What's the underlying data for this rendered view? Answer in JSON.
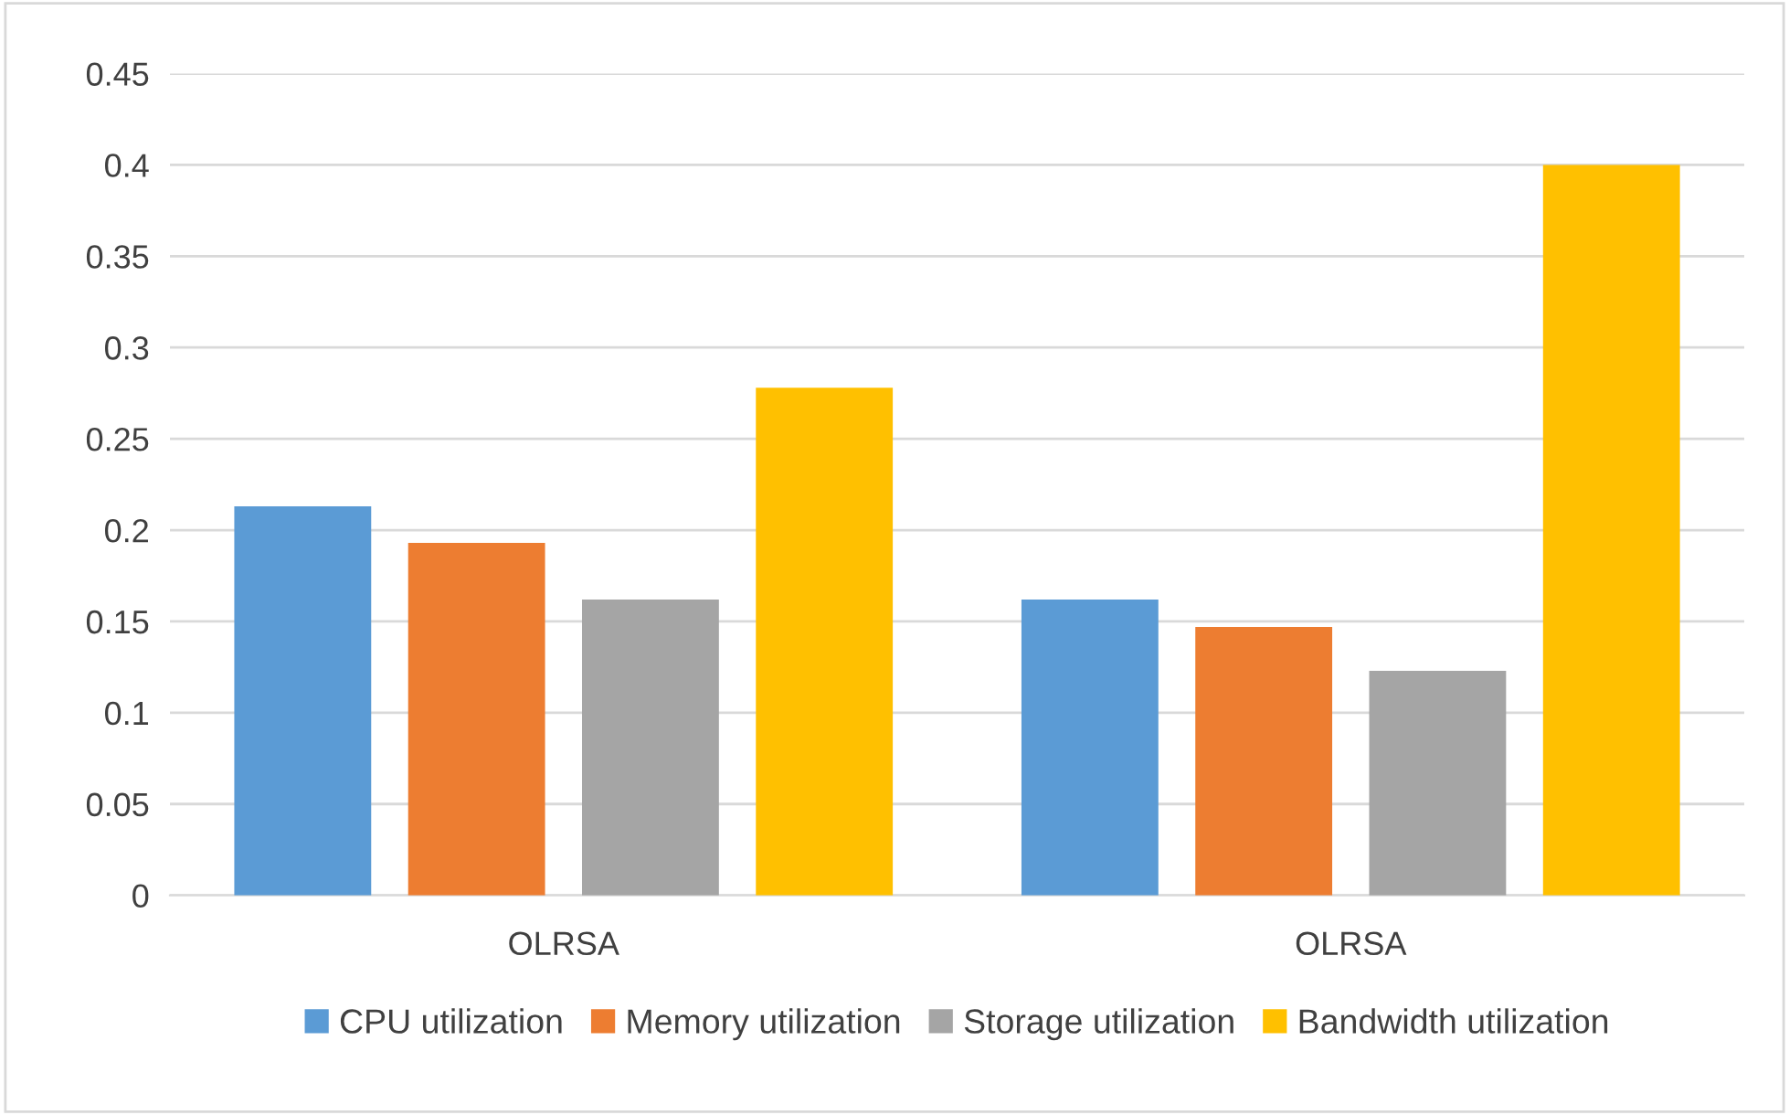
{
  "chart_data": {
    "type": "bar",
    "categories": [
      "OLRSA",
      "OLRSA"
    ],
    "series": [
      {
        "name": "CPU utilization",
        "color": "#5b9bd5",
        "values": [
          0.213,
          0.162
        ]
      },
      {
        "name": "Memory utilization",
        "color": "#ed7d31",
        "values": [
          0.193,
          0.147
        ]
      },
      {
        "name": "Storage utilization",
        "color": "#a5a5a5",
        "values": [
          0.162,
          0.123
        ]
      },
      {
        "name": "Bandwidth utilization",
        "color": "#ffc000",
        "values": [
          0.278,
          0.4
        ]
      }
    ],
    "ylim": [
      0,
      0.45
    ],
    "yticks": [
      0,
      0.05,
      0.1,
      0.15,
      0.2,
      0.25,
      0.3,
      0.35,
      0.4,
      0.45
    ],
    "grid": "y",
    "legend": "bottom"
  }
}
